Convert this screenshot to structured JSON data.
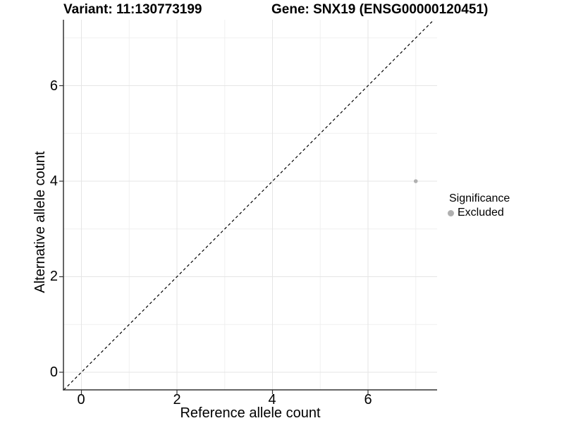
{
  "header": {
    "variant_title": "Variant: 11:130773199",
    "gene_title": "Gene: SNX19 (ENSG00000120451)"
  },
  "axes": {
    "x": {
      "label": "Reference allele count",
      "ticks": [
        "0",
        "2",
        "4",
        "6"
      ]
    },
    "y": {
      "label": "Alternative allele count",
      "ticks": [
        "0",
        "2",
        "4",
        "6"
      ]
    }
  },
  "legend": {
    "title": "Significance",
    "entries": [
      {
        "label": "Excluded",
        "color": "#b0b0b0"
      }
    ]
  },
  "colors": {
    "point": "#b0b0b0",
    "axis": "#333333",
    "tick": "#333333",
    "grid_major": "#e5e5e5",
    "grid_minor": "#f0f0f0",
    "reference_line": "#000000"
  },
  "chart_data": {
    "type": "scatter",
    "title": "Variant: 11:130773199 | Gene: SNX19 (ENSG00000120451)",
    "xlabel": "Reference allele count",
    "ylabel": "Alternative allele count",
    "xlim": [
      -0.38,
      7.45
    ],
    "ylim": [
      -0.37,
      7.38
    ],
    "x_ticks": [
      0,
      2,
      4,
      6
    ],
    "x_minor_ticks": [
      1,
      3,
      5,
      7
    ],
    "y_ticks": [
      0,
      2,
      4,
      6
    ],
    "y_minor_ticks": [
      1,
      3,
      5,
      7
    ],
    "grid": true,
    "legend_position": "right",
    "series": [
      {
        "name": "Excluded",
        "color": "#b0b0b0",
        "marker": "circle",
        "points": [
          {
            "x": 7,
            "y": 4
          }
        ]
      }
    ],
    "reference_line": {
      "equation": "y = x",
      "slope": 1,
      "intercept": 0,
      "style": "dashed",
      "color": "#000000"
    }
  }
}
